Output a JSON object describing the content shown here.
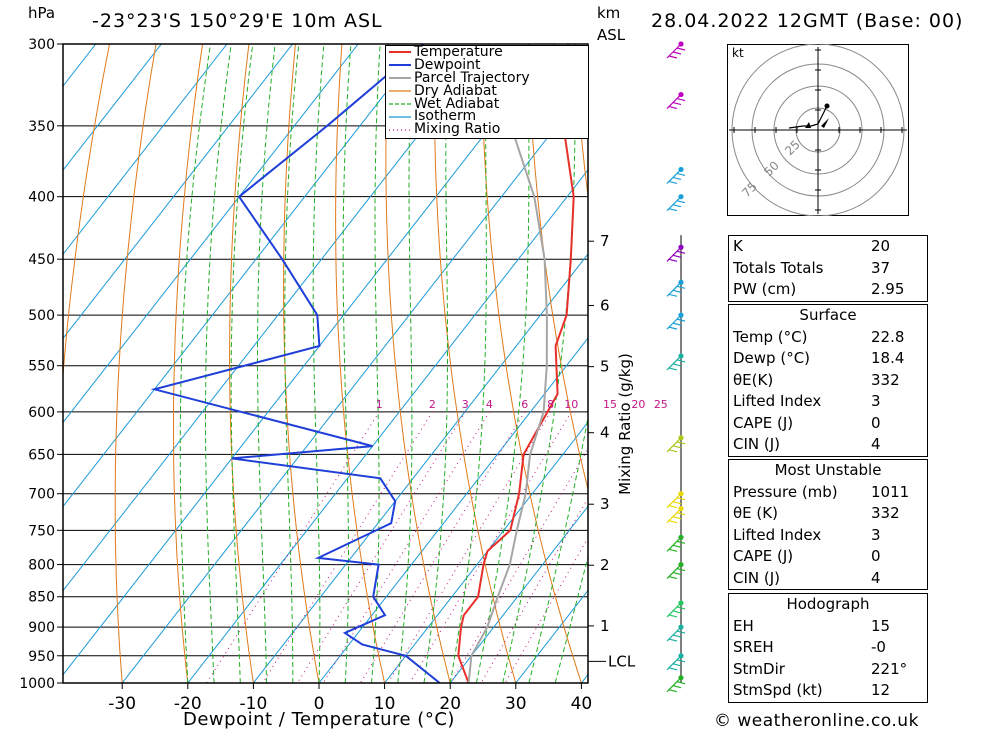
{
  "header": {
    "pressure_unit": "hPa",
    "location": "-23°23'S 150°29'E 10m ASL",
    "km_label": "km",
    "asl_label": "ASL",
    "datetime": "28.04.2022 12GMT (Base: 00)"
  },
  "footer": {
    "copyright": "© weatheronline.co.uk"
  },
  "chart_data": {
    "type": "line",
    "xlabel": "Dewpoint / Temperature (°C)",
    "ylabel": "hPa",
    "x_ticks": [
      -30,
      -20,
      -10,
      0,
      10,
      20,
      30,
      40
    ],
    "pressure_levels": [
      300,
      350,
      400,
      450,
      500,
      550,
      600,
      650,
      700,
      750,
      800,
      850,
      900,
      950,
      1000
    ],
    "height_km_labels": [
      "7",
      "6",
      "5",
      "4",
      "3",
      "2",
      "1"
    ],
    "lcl_label": "LCL",
    "mixing_ratio_axis_label": "Mixing Ratio (g/kg)",
    "mixing_ratio_labels": [
      "1",
      "2",
      "3",
      "4",
      "6",
      "8",
      "10",
      "15",
      "20",
      "25"
    ],
    "legend": [
      "Temperature",
      "Dewpoint",
      "Parcel Trajectory",
      "Dry Adiabat",
      "Wet Adiabat",
      "Isotherm",
      "Mixing Ratio"
    ],
    "colors": {
      "temperature": "#e8302a",
      "dewpoint": "#1f3fd8",
      "parcel": "#a6a6a6",
      "dry_adiabat": "#e07a1a",
      "wet_adiabat": "#22b022",
      "isotherm": "#1a9ad8",
      "mixing_ratio": "#c0168a"
    },
    "series": [
      {
        "name": "Temperature",
        "points": [
          [
            300,
            -38
          ],
          [
            350,
            -29
          ],
          [
            400,
            -19
          ],
          [
            450,
            -12
          ],
          [
            500,
            -6
          ],
          [
            530,
            -4
          ],
          [
            580,
            2
          ],
          [
            650,
            4
          ],
          [
            700,
            8
          ],
          [
            750,
            11
          ],
          [
            780,
            10
          ],
          [
            800,
            11
          ],
          [
            850,
            14
          ],
          [
            880,
            14
          ],
          [
            900,
            15
          ],
          [
            950,
            18
          ],
          [
            1000,
            22.8
          ]
        ]
      },
      {
        "name": "Dewpoint",
        "points": [
          [
            300,
            -60
          ],
          [
            350,
            -65
          ],
          [
            400,
            -70
          ],
          [
            450,
            -56
          ],
          [
            500,
            -44
          ],
          [
            530,
            -40
          ],
          [
            575,
            -60
          ],
          [
            640,
            -20
          ],
          [
            655,
            -40
          ],
          [
            680,
            -15
          ],
          [
            710,
            -10
          ],
          [
            740,
            -8
          ],
          [
            790,
            -15
          ],
          [
            800,
            -5
          ],
          [
            850,
            -2
          ],
          [
            880,
            2
          ],
          [
            910,
            -2
          ],
          [
            930,
            2
          ],
          [
            950,
            10
          ],
          [
            1000,
            18.4
          ]
        ]
      },
      {
        "name": "Parcel Trajectory",
        "points": [
          [
            310,
            -47
          ],
          [
            350,
            -37
          ],
          [
            400,
            -25
          ],
          [
            450,
            -16
          ],
          [
            500,
            -9
          ],
          [
            550,
            -3
          ],
          [
            600,
            2
          ],
          [
            650,
            5
          ],
          [
            700,
            9
          ],
          [
            750,
            12
          ],
          [
            800,
            15
          ],
          [
            850,
            17
          ],
          [
            900,
            19
          ],
          [
            950,
            20
          ],
          [
            1000,
            22.8
          ]
        ]
      }
    ],
    "hodograph": {
      "unit": "kt",
      "ring_labels": [
        "25",
        "50",
        "75"
      ]
    }
  },
  "indices": {
    "k_label": "K",
    "k": "20",
    "tt_label": "Totals Totals",
    "tt": "37",
    "pw_label": "PW (cm)",
    "pw": "2.95"
  },
  "surface": {
    "title": "Surface",
    "temp_label": "Temp (°C)",
    "temp": "22.8",
    "dewp_label": "Dewp (°C)",
    "dewp": "18.4",
    "theta_label": "θE(K)",
    "theta": "332",
    "li_label": "Lifted Index",
    "li": "3",
    "cape_label": "CAPE (J)",
    "cape": "0",
    "cin_label": "CIN (J)",
    "cin": "4"
  },
  "most_unstable": {
    "title": "Most Unstable",
    "pressure_label": "Pressure (mb)",
    "pressure": "1011",
    "theta_label": "θE (K)",
    "theta": "332",
    "li_label": "Lifted Index",
    "li": "3",
    "cape_label": "CAPE (J)",
    "cape": "0",
    "cin_label": "CIN (J)",
    "cin": "4"
  },
  "hodograph_table": {
    "title": "Hodograph",
    "eh_label": "EH",
    "eh": "15",
    "sreh_label": "SREH",
    "sreh": "-0",
    "stmdir_label": "StmDir",
    "stmdir": "221°",
    "stmspd_label": "StmSpd (kt)",
    "stmspd": "12"
  }
}
